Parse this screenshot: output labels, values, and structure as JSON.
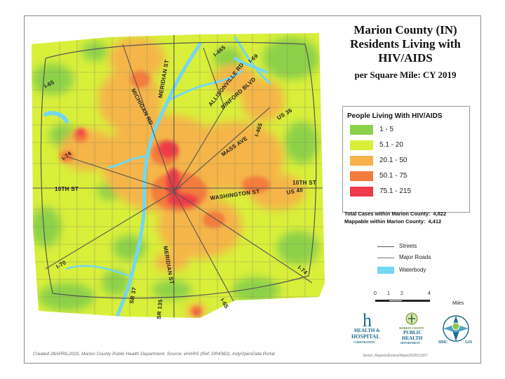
{
  "title": {
    "line1": "Marion County (IN)",
    "line2": "Residents Living with",
    "line3": "HIV/AIDS",
    "subtitle": "per Square Mile: CY 2019"
  },
  "legend": {
    "heading": "People Living With HIV/AIDS",
    "classes": [
      {
        "label": "1 - 5",
        "color": "#8cd14a"
      },
      {
        "label": "5.1 - 20",
        "color": "#d9ef3a"
      },
      {
        "label": "20.1 - 50",
        "color": "#f7b24a"
      },
      {
        "label": "50.1 - 75",
        "color": "#f47b3d"
      },
      {
        "label": "75.1 - 215",
        "color": "#ee3a4a"
      }
    ]
  },
  "stats": {
    "total_label": "Total Cases within Marion County:",
    "total_value": "4,822",
    "mappable_label": "Mappable within Marion County:",
    "mappable_value": "4,412"
  },
  "reference": {
    "streets": "Streets",
    "major_roads": "Major Roads",
    "waterbody": "Waterbody"
  },
  "scale": {
    "ticks": [
      "0",
      "1",
      "2",
      "4"
    ],
    "unit": "Miles"
  },
  "road_labels": {
    "i465_nw": "I-65",
    "i465_n": "I-465",
    "michigan": "MICHIGAN RD",
    "meridian_n": "MERIDIAN ST",
    "allisonville": "ALLISONVILLE RD",
    "binford": "BINFORD BLVD",
    "i69": "I-69",
    "us36": "US 36",
    "i465_e": "I-465",
    "mass": "MASS AVE",
    "i74": "I-74",
    "tenth_w": "10TH ST",
    "tenth_e": "10TH ST",
    "washington": "WASHINGTON ST",
    "us40": "US 40",
    "meridian_s": "MERIDIAN ST",
    "i70": "I-70",
    "sr37": "SR 37",
    "sr135": "SR 135",
    "i65_s": "I-65",
    "i74_se": "I-74"
  },
  "logos": {
    "hhc_line1": "HEALTH &",
    "hhc_line2": "HOSPITAL",
    "hhc_line3": "CORPORATION",
    "mcph_line1": "MARION COUNTY",
    "mcph_line2": "PUBLIC",
    "mcph_line3": "HEALTH",
    "mcph_line4": "DEPARTMENT",
    "gis_left": "HHC",
    "gis_right": "GIS"
  },
  "footer": {
    "credits": "Created 28APRIL2020, Marion County Public Health Department. Source: eHARS (Ref. DR4362), IndyOpenData Portal",
    "file": "Senior_Reports/Eunice/Maps/2020/13357"
  },
  "colors": {
    "background_green": "#8cd14a",
    "water": "#73d7f2",
    "street": "#8a8a6a"
  }
}
